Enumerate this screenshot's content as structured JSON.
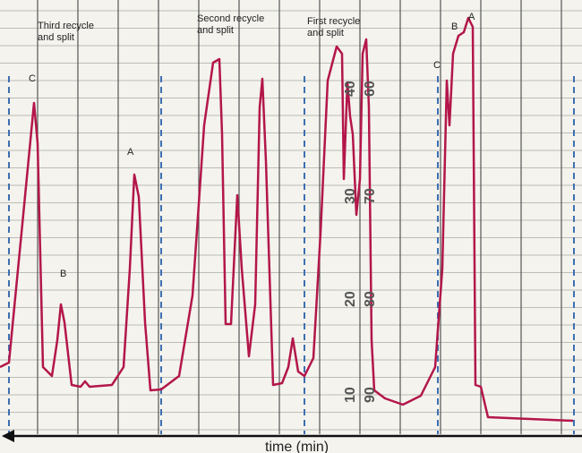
{
  "annotations": {
    "third": [
      "Third recycle",
      "and split"
    ],
    "second": [
      "Second recycle",
      "and split"
    ],
    "first": [
      "First recycle",
      "and split"
    ]
  },
  "peaks": [
    "C",
    "B",
    "A",
    "C",
    "B",
    "A"
  ],
  "paper_scale_left": [
    "40",
    "30",
    "20",
    "10"
  ],
  "paper_scale_right": [
    "60",
    "70",
    "80",
    "90"
  ],
  "axis_label": "time (min)"
}
